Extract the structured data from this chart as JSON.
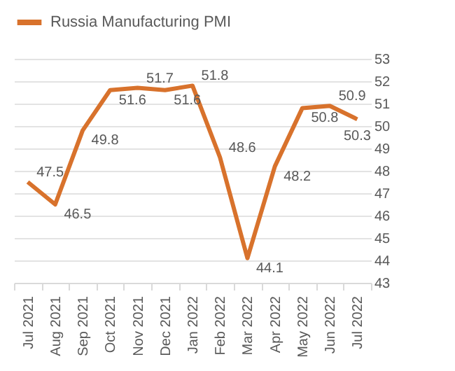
{
  "chart_data": {
    "type": "line",
    "categories": [
      "Jul 2021",
      "Aug 2021",
      "Sep 2021",
      "Oct 2021",
      "Nov 2021",
      "Dec 2021",
      "Jan 2022",
      "Feb 2022",
      "Mar 2022",
      "Apr 2022",
      "May 2022",
      "Jun 2022",
      "Jul 2022"
    ],
    "series": [
      {
        "name": "Russia Manufacturing PMI",
        "color": "#d8722c",
        "values": [
          47.5,
          46.5,
          49.8,
          51.6,
          51.7,
          51.6,
          51.8,
          48.6,
          44.1,
          48.2,
          50.8,
          50.9,
          50.3
        ]
      }
    ],
    "ylim": [
      43,
      53
    ],
    "yticks": [
      43,
      44,
      45,
      46,
      47,
      48,
      49,
      50,
      51,
      52,
      53
    ],
    "grid": "y",
    "legend": "top",
    "data_labels": true,
    "marker": "none",
    "line_style": "solid"
  }
}
